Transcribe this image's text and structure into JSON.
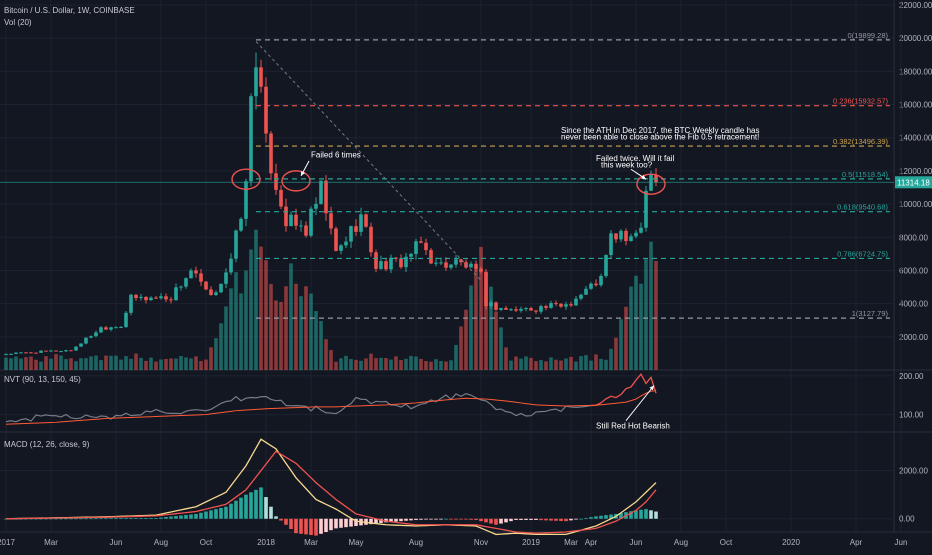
{
  "header": {
    "symbol": "Bitcoin / U.S. Dollar, 1W, COINBASE",
    "volume": "Vol (20)"
  },
  "colors": {
    "background": "#131722",
    "up": "#26a69a",
    "down": "#ef5350",
    "grid": "#1e2230",
    "axis_text": "#b2b5be",
    "nvt": "#ef5350",
    "nvt_signal": "#787b86",
    "macd": "#f7d98f",
    "macd_signal": "#ef5350",
    "price_label_bg": "#26a69a"
  },
  "chart_data": [
    {
      "type": "candlestick",
      "name": "price",
      "title": "Bitcoin / U.S. Dollar, 1W, COINBASE",
      "ylim": [
        0,
        22000
      ],
      "yticks": [
        2000,
        4000,
        6000,
        8000,
        10000,
        12000,
        14000,
        16000,
        18000,
        20000,
        22000
      ],
      "ytick_labels": [
        "2000.00",
        "4000.00",
        "6000.00",
        "8000.00",
        "10000.00",
        "12000.00",
        "14000.00",
        "16000.00",
        "18000.00",
        "20000.00",
        "22000.00"
      ],
      "x_labels": [
        "2017",
        "Mar",
        "Jun",
        "Aug",
        "Oct",
        "2018",
        "Mar",
        "May",
        "Aug",
        "Nov",
        "2019",
        "Mar",
        "Apr",
        "Jun",
        "Aug",
        "Oct",
        "2020",
        "Apr",
        "Jun"
      ],
      "x_label_weeks": [
        0,
        9,
        22,
        31,
        40,
        52,
        61,
        70,
        82,
        95,
        105,
        113,
        117,
        126,
        135,
        144,
        157,
        170,
        179
      ],
      "last_price_label": "11314.18",
      "last_price": 11314.18,
      "anchor_weeks": [
        0,
        7,
        13,
        19,
        23,
        25,
        33,
        37,
        41,
        45,
        48,
        49,
        50,
        52,
        56,
        60,
        63,
        66,
        71,
        74,
        79,
        83,
        86,
        90,
        92,
        95,
        96,
        98,
        101,
        105,
        111,
        113,
        116,
        118,
        119,
        121,
        123,
        125,
        127,
        128,
        129,
        130
      ],
      "anchor_prices": [
        970,
        1100,
        1200,
        2550,
        2700,
        4300,
        4400,
        6000,
        4300,
        6500,
        11000,
        16500,
        19200,
        13500,
        9000,
        8400,
        10800,
        7000,
        9300,
        6300,
        6500,
        7600,
        6300,
        6500,
        6300,
        5600,
        4050,
        3800,
        3600,
        3700,
        3900,
        4100,
        4800,
        5300,
        5500,
        8000,
        8200,
        7600,
        9000,
        10800,
        12500,
        11314
      ],
      "volume_peaks": [
        {
          "week": 46,
          "value": 0.55
        },
        {
          "week": 50,
          "value": 0.85
        },
        {
          "week": 52,
          "value": 0.62
        },
        {
          "week": 57,
          "value": 0.6
        },
        {
          "week": 60,
          "value": 0.5
        },
        {
          "week": 95,
          "value": 0.7
        },
        {
          "week": 126,
          "value": 0.55
        },
        {
          "week": 129,
          "value": 0.78
        }
      ],
      "levels": [
        {
          "label": "0(19899.28)",
          "price": 19899.28,
          "color": "#9598a1"
        },
        {
          "label": "0.236(15932.57)",
          "price": 15932.57,
          "color": "#ef5350"
        },
        {
          "label": "0.382(13496.39)",
          "price": 13496.39,
          "color": "#c9a24b"
        },
        {
          "label": "0.5(11518.54)",
          "price": 11518.54,
          "color": "#26a69a"
        },
        {
          "label": "0.618(9540.68)",
          "price": 9540.68,
          "color": "#26a69a"
        },
        {
          "label": "0.786(6724.75)",
          "price": 6724.75,
          "color": "#26a69a"
        },
        {
          "label": "1(3127.79)",
          "price": 3127.79,
          "color": "#9598a1"
        }
      ],
      "trendline": {
        "from_week": 50,
        "from_price": 19800,
        "to_week": 95,
        "to_price": 5400
      },
      "annotations": [
        {
          "text": "Failed 6 times",
          "week": 61,
          "price": 12800
        },
        {
          "text": "Since the ATH in Dec 2017, the BTC Weekly candle has",
          "week": 111,
          "price": 14300
        },
        {
          "text": "never been able to close above the Fib 0.5 retracement!",
          "week": 111,
          "price": 13900
        },
        {
          "text": "Failed twice. Will it fail",
          "week": 118,
          "price": 12600
        },
        {
          "text": "this week too?",
          "week": 119,
          "price": 12200
        }
      ],
      "highlight_ellipses": [
        {
          "center_week": 48,
          "center_price": 11500
        },
        {
          "center_week": 58,
          "center_price": 11400
        },
        {
          "center_week": 129,
          "center_price": 11200
        }
      ]
    },
    {
      "type": "line",
      "name": "NVT",
      "title": "NVT (90, 13, 150, 45)",
      "ylim": [
        55,
        215
      ],
      "ytick_labels": [
        "200.00",
        "100.00"
      ],
      "yticks": [
        200,
        100
      ],
      "anchor_weeks": [
        0,
        10,
        20,
        30,
        40,
        46,
        52,
        58,
        62,
        66,
        70,
        76,
        82,
        88,
        92,
        96,
        100,
        106,
        112,
        118,
        124,
        126,
        127,
        128,
        129,
        130
      ],
      "nvt_values": [
        80,
        100,
        90,
        110,
        105,
        140,
        145,
        120,
        115,
        100,
        140,
        130,
        120,
        145,
        150,
        130,
        105,
        100,
        115,
        130,
        160,
        185,
        205,
        175,
        190,
        160
      ],
      "signal_values": [
        75,
        80,
        90,
        95,
        100,
        110,
        115,
        118,
        120,
        120,
        122,
        125,
        130,
        138,
        142,
        140,
        135,
        125,
        122,
        124,
        132,
        140,
        148,
        155,
        160,
        162
      ],
      "red_from_week": 117,
      "annotation": {
        "text": "Still Red Hot Bearish",
        "week": 130,
        "value": 110
      }
    },
    {
      "type": "bar+line",
      "name": "MACD",
      "title": "MACD (12, 26, close, 9)",
      "ylim": [
        -550,
        3600
      ],
      "ytick_labels": [
        "2000.00",
        "0.00"
      ],
      "yticks": [
        2000,
        0
      ],
      "anchor_weeks": [
        0,
        20,
        30,
        38,
        44,
        48,
        51,
        54,
        58,
        62,
        66,
        70,
        76,
        82,
        88,
        94,
        98,
        102,
        106,
        112,
        118,
        122,
        126,
        128,
        130
      ],
      "macd_values": [
        0,
        80,
        150,
        500,
        1100,
        2200,
        3300,
        2900,
        1700,
        800,
        400,
        -100,
        -250,
        -300,
        -250,
        -300,
        -650,
        -600,
        -650,
        -650,
        -300,
        100,
        700,
        1100,
        1500
      ],
      "signal_values": [
        0,
        60,
        120,
        300,
        600,
        1200,
        2000,
        2800,
        2300,
        1500,
        800,
        200,
        -100,
        -250,
        -250,
        -250,
        -400,
        -550,
        -600,
        -550,
        -400,
        -100,
        350,
        700,
        1200
      ]
    }
  ]
}
